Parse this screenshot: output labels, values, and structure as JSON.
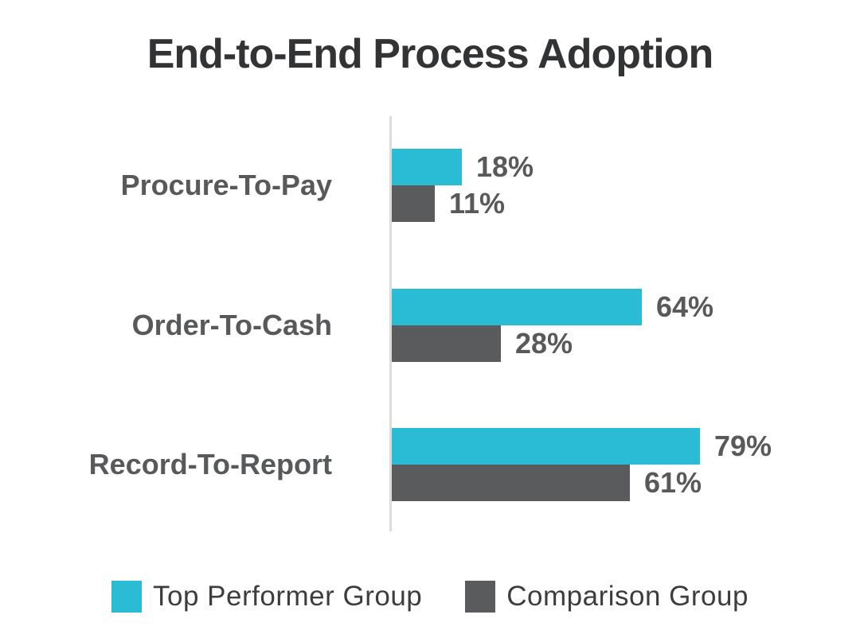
{
  "title": "End-to-End Process Adoption",
  "chart_data": {
    "type": "bar",
    "orientation": "horizontal",
    "title": "End-to-End Process Adoption",
    "categories": [
      "Procure-To-Pay",
      "Order-To-Cash",
      "Record-To-Report"
    ],
    "series": [
      {
        "name": "Top Performer Group",
        "color": "#2ABCD4",
        "values": [
          18,
          64,
          79
        ]
      },
      {
        "name": "Comparison Group",
        "color": "#5A5B5D",
        "values": [
          11,
          28,
          61
        ]
      }
    ],
    "value_suffix": "%",
    "xlim": [
      0,
      100
    ],
    "data_labels": true,
    "grid": false,
    "legend_position": "bottom"
  },
  "colors": {
    "background": "#FFFFFF",
    "title_text": "#323335",
    "label_text": "#58595B",
    "legend_text": "#3C3D3F",
    "axis_line": "#DCDCDC"
  }
}
